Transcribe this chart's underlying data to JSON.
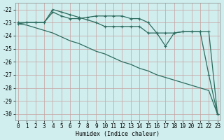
{
  "line1_x": [
    0,
    1,
    2,
    3,
    4,
    5,
    6,
    7,
    8,
    9,
    10,
    11,
    12,
    13,
    14,
    15,
    16,
    17,
    18,
    19,
    20,
    21,
    22,
    23
  ],
  "line1_y": [
    -23.0,
    -23.0,
    -23.0,
    -23.0,
    -22.2,
    -22.5,
    -22.7,
    -22.7,
    -22.6,
    -22.5,
    -22.5,
    -22.5,
    -22.5,
    -22.7,
    -22.7,
    -23.0,
    -23.8,
    -23.8,
    -23.8,
    -23.7,
    -23.7,
    -23.7,
    -23.7,
    -30.0
  ],
  "line2_x": [
    0,
    1,
    2,
    3,
    4,
    5,
    6,
    7,
    8,
    9,
    10,
    11,
    12,
    13,
    14,
    15,
    16,
    17,
    18,
    19,
    20,
    21,
    22,
    23
  ],
  "line2_y": [
    -23.1,
    -23.0,
    -23.0,
    -23.0,
    -22.0,
    -22.2,
    -22.4,
    -22.6,
    -22.8,
    -23.0,
    -23.3,
    -23.3,
    -23.3,
    -23.3,
    -23.3,
    -23.8,
    -23.8,
    -24.8,
    -23.8,
    -23.7,
    -23.7,
    -23.7,
    -27.0,
    -30.0
  ],
  "line3_x": [
    0,
    1,
    2,
    3,
    4,
    5,
    6,
    7,
    8,
    9,
    10,
    11,
    12,
    13,
    14,
    15,
    16,
    17,
    18,
    19,
    20,
    21,
    22,
    23
  ],
  "line3_y": [
    -23.1,
    -23.2,
    -23.4,
    -23.6,
    -23.8,
    -24.1,
    -24.4,
    -24.6,
    -24.9,
    -25.2,
    -25.4,
    -25.7,
    -26.0,
    -26.2,
    -26.5,
    -26.7,
    -27.0,
    -27.2,
    -27.4,
    -27.6,
    -27.8,
    -28.0,
    -28.2,
    -30.0
  ],
  "line_color": "#2d6b5e",
  "bg_color": "#d0eeee",
  "grid_color": "#c8a0a0",
  "xlabel": "Humidex (Indice chaleur)",
  "ylabel_ticks": [
    -22,
    -23,
    -24,
    -25,
    -26,
    -27,
    -28,
    -29,
    -30
  ],
  "xticks": [
    0,
    1,
    2,
    3,
    4,
    5,
    6,
    7,
    8,
    9,
    10,
    11,
    12,
    13,
    14,
    15,
    16,
    17,
    18,
    19,
    20,
    21,
    22,
    23
  ],
  "ylim": [
    -30.5,
    -21.5
  ],
  "xlim": [
    -0.3,
    23.3
  ],
  "fontsize_label": 6,
  "fontsize_tick": 5.5,
  "marker": "+"
}
